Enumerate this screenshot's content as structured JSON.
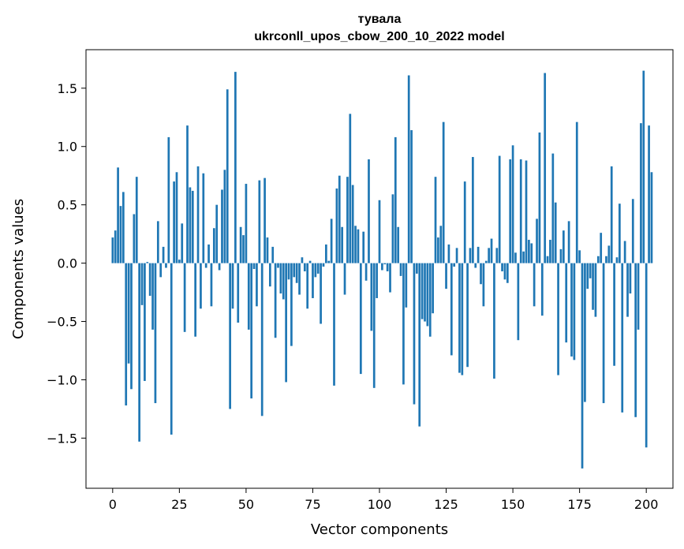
{
  "chart_data": {
    "type": "bar",
    "title_lines": [
      "тувала",
      "ukrconll_upos_cbow_200_10_2022 model"
    ],
    "xlabel": "Vector components",
    "ylabel": "Components values",
    "xlim": [
      -10,
      210
    ],
    "ylim": [
      -1.93,
      1.83
    ],
    "x_ticks": [
      0,
      25,
      50,
      75,
      100,
      125,
      150,
      175,
      200
    ],
    "x_tick_labels": [
      "0",
      "25",
      "50",
      "75",
      "100",
      "125",
      "150",
      "175",
      "200"
    ],
    "y_ticks": [
      -1.5,
      -1.0,
      -0.5,
      0.0,
      0.5,
      1.0,
      1.5
    ],
    "y_tick_labels": [
      "−1.5",
      "−1.0",
      "−0.5",
      "0.0",
      "0.5",
      "1.0",
      "1.5"
    ],
    "bar_color": "#1f77b4",
    "grid": false,
    "values": [
      0.22,
      0.28,
      0.82,
      0.49,
      0.61,
      -1.22,
      -0.86,
      -1.08,
      0.42,
      0.74,
      -1.53,
      -0.36,
      -1.01,
      0.01,
      -0.28,
      -0.57,
      -1.2,
      0.36,
      -0.12,
      0.14,
      -0.04,
      1.08,
      -1.47,
      0.7,
      0.78,
      0.03,
      0.34,
      -0.59,
      1.18,
      0.65,
      0.62,
      -0.63,
      0.83,
      -0.39,
      0.77,
      -0.04,
      0.16,
      -0.37,
      0.3,
      0.5,
      -0.06,
      0.63,
      0.8,
      1.49,
      -1.25,
      -0.39,
      1.64,
      -0.51,
      0.31,
      0.24,
      0.68,
      -0.57,
      -1.16,
      -0.05,
      -0.37,
      0.71,
      -1.31,
      0.73,
      0.22,
      -0.2,
      0.14,
      -0.64,
      -0.04,
      -0.26,
      -0.31,
      -1.02,
      -0.14,
      -0.71,
      -0.12,
      -0.17,
      -0.27,
      0.05,
      -0.07,
      -0.39,
      0.02,
      -0.3,
      -0.12,
      -0.09,
      -0.52,
      -0.03,
      0.16,
      0.02,
      0.38,
      -1.05,
      0.64,
      0.75,
      0.31,
      -0.27,
      0.74,
      1.28,
      0.67,
      0.32,
      0.29,
      -0.95,
      0.27,
      -0.15,
      0.89,
      -0.58,
      -1.07,
      -0.3,
      0.54,
      -0.06,
      -0.01,
      -0.07,
      -0.25,
      0.59,
      1.08,
      0.31,
      -0.11,
      -1.04,
      -0.38,
      1.61,
      1.14,
      -1.21,
      -0.09,
      -1.4,
      -0.48,
      -0.5,
      -0.54,
      -0.63,
      -0.43,
      0.74,
      0.22,
      0.32,
      1.21,
      -0.22,
      0.16,
      -0.79,
      -0.03,
      0.13,
      -0.94,
      -0.96,
      0.7,
      -0.89,
      0.13,
      0.91,
      -0.04,
      0.14,
      -0.18,
      -0.37,
      0.02,
      0.13,
      0.21,
      -0.99,
      0.13,
      0.92,
      -0.07,
      -0.14,
      -0.17,
      0.89,
      1.01,
      0.09,
      -0.66,
      0.89,
      0.1,
      0.88,
      0.2,
      0.17,
      -0.37,
      0.38,
      1.12,
      -0.45,
      1.63,
      0.06,
      0.2,
      0.94,
      0.52,
      -0.96,
      0.12,
      0.28,
      -0.68,
      0.36,
      -0.8,
      -0.83,
      1.21,
      0.11,
      -1.76,
      -1.19,
      -0.22,
      -0.13,
      -0.4,
      -0.46,
      0.06,
      0.26,
      -1.2,
      0.06,
      0.15,
      0.83,
      -0.88,
      0.05,
      0.51,
      -1.28,
      0.19,
      -0.46,
      -0.26,
      0.55,
      -1.32,
      -0.57,
      1.2,
      1.65,
      -1.58,
      1.18,
      0.78
    ]
  }
}
